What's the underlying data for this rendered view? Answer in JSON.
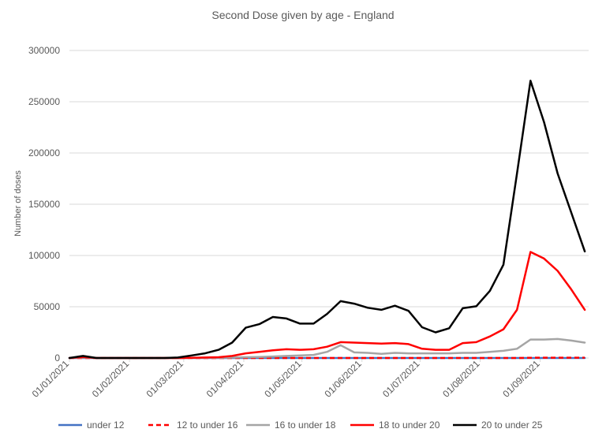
{
  "chart_data": {
    "type": "line",
    "title": "Second Dose given by age - England",
    "xlabel": "",
    "ylabel": "Number of doses",
    "ylim": [
      0,
      300000
    ],
    "yticks": [
      0,
      50000,
      100000,
      150000,
      200000,
      250000,
      300000
    ],
    "ytick_labels": [
      "0",
      "50000",
      "100000",
      "150000",
      "200000",
      "250000",
      "300000"
    ],
    "xlim": [
      "2021-01-01",
      "2021-09-26"
    ],
    "xticks": [
      "2021-01-01",
      "2021-02-01",
      "2021-03-01",
      "2021-04-01",
      "2021-05-01",
      "2021-06-01",
      "2021-07-01",
      "2021-08-01",
      "2021-09-01"
    ],
    "xtick_labels": [
      "01/01/2021",
      "01/02/2021",
      "01/03/2021",
      "01/04/2021",
      "01/05/2021",
      "01/06/2021",
      "01/07/2021",
      "01/08/2021",
      "01/09/2021"
    ],
    "grid": true,
    "legend_position": "bottom",
    "x": [
      "2021-01-01",
      "2021-01-08",
      "2021-01-15",
      "2021-01-22",
      "2021-01-29",
      "2021-02-05",
      "2021-02-12",
      "2021-02-19",
      "2021-02-26",
      "2021-03-05",
      "2021-03-12",
      "2021-03-19",
      "2021-03-26",
      "2021-04-02",
      "2021-04-09",
      "2021-04-16",
      "2021-04-23",
      "2021-04-30",
      "2021-05-07",
      "2021-05-14",
      "2021-05-21",
      "2021-05-28",
      "2021-06-04",
      "2021-06-11",
      "2021-06-18",
      "2021-06-25",
      "2021-07-02",
      "2021-07-09",
      "2021-07-16",
      "2021-07-23",
      "2021-07-30",
      "2021-08-06",
      "2021-08-13",
      "2021-08-20",
      "2021-08-27",
      "2021-09-03",
      "2021-09-10",
      "2021-09-17",
      "2021-09-24"
    ],
    "series": [
      {
        "name": "under 12",
        "color": "#4472C4",
        "dash": "solid",
        "values": [
          0,
          0,
          0,
          0,
          0,
          0,
          0,
          0,
          0,
          0,
          0,
          0,
          0,
          0,
          0,
          0,
          0,
          0,
          0,
          0,
          0,
          0,
          0,
          0,
          0,
          0,
          0,
          0,
          0,
          0,
          0,
          0,
          0,
          0,
          0,
          0,
          0,
          0,
          0
        ]
      },
      {
        "name": "12 to under 16",
        "color": "#FF0000",
        "dash": "dashed",
        "values": [
          0,
          0,
          0,
          0,
          0,
          0,
          0,
          0,
          0,
          0,
          0,
          0,
          0,
          0,
          0,
          0,
          0,
          0,
          0,
          0,
          0,
          0,
          0,
          0,
          0,
          0,
          0,
          0,
          0,
          0,
          0,
          0,
          0,
          0,
          200,
          300,
          300,
          300,
          300
        ]
      },
      {
        "name": "16 to under 18",
        "color": "#A5A5A5",
        "dash": "solid",
        "values": [
          0,
          500,
          0,
          0,
          0,
          0,
          0,
          0,
          0,
          100,
          200,
          300,
          500,
          800,
          1000,
          1500,
          2000,
          2500,
          3000,
          6000,
          12500,
          5500,
          5000,
          4000,
          5000,
          4500,
          4500,
          4500,
          4500,
          5000,
          5000,
          6000,
          7000,
          9000,
          18000,
          18000,
          18500,
          17000,
          15000
        ]
      },
      {
        "name": "18  to under 20",
        "color": "#FF0000",
        "dash": "solid",
        "values": [
          0,
          1000,
          0,
          0,
          0,
          0,
          0,
          0,
          0,
          200,
          500,
          800,
          2000,
          4500,
          6000,
          7500,
          8500,
          8000,
          8500,
          11000,
          15500,
          15000,
          14500,
          14000,
          14500,
          13500,
          9000,
          8000,
          8000,
          14500,
          15500,
          21000,
          28000,
          47000,
          103500,
          97000,
          85000,
          67000,
          47000
        ]
      },
      {
        "name": "20 to under 25",
        "color": "#000000",
        "dash": "solid",
        "values": [
          0,
          2000,
          0,
          0,
          0,
          0,
          0,
          0,
          500,
          2500,
          4500,
          8000,
          15000,
          29500,
          33000,
          40000,
          38500,
          33500,
          33500,
          43000,
          55500,
          53000,
          49000,
          47000,
          51000,
          46000,
          30000,
          25000,
          29000,
          48500,
          50500,
          65500,
          91000,
          180000,
          270500,
          230000,
          180000,
          142000,
          104000
        ]
      }
    ]
  }
}
